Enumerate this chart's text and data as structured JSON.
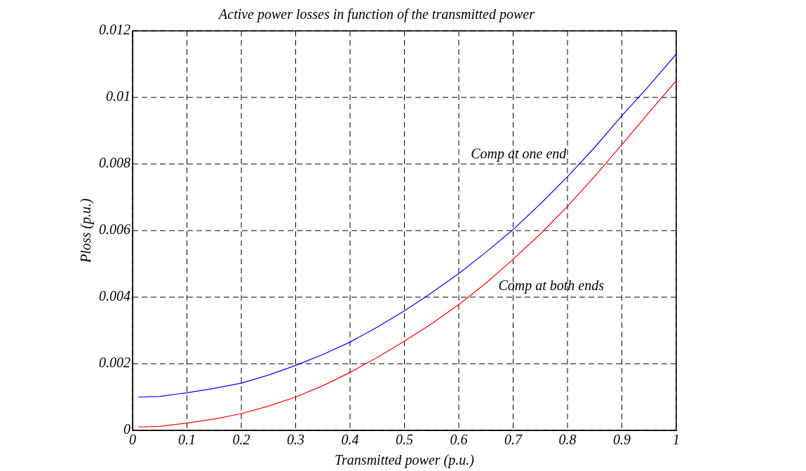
{
  "chart_data": {
    "type": "line",
    "title": "Active power losses in function of the transmitted power",
    "xlabel": "Transmitted power (p.u.)",
    "ylabel": "Ploss (p.u.)",
    "x": [
      0.01,
      0.05,
      0.1,
      0.15,
      0.2,
      0.25,
      0.3,
      0.35,
      0.4,
      0.45,
      0.5,
      0.55,
      0.6,
      0.65,
      0.7,
      0.75,
      0.8,
      0.85,
      0.9,
      0.95,
      1
    ],
    "series": [
      {
        "color": "#0000ff",
        "values": [
          0.001,
          0.00102,
          0.00113,
          0.00126,
          0.00142,
          0.00166,
          0.00195,
          0.00228,
          0.00265,
          0.0031,
          0.00359,
          0.00413,
          0.00471,
          0.00535,
          0.00603,
          0.0068,
          0.00762,
          0.0085,
          0.00945,
          0.01035,
          0.0113
        ]
      },
      {
        "color": "#ff0000",
        "values": [
          0.0001,
          0.00012,
          0.00022,
          0.00034,
          0.0005,
          0.00073,
          0.001,
          0.00134,
          0.00174,
          0.00219,
          0.00268,
          0.0032,
          0.00378,
          0.00442,
          0.00514,
          0.0059,
          0.00673,
          0.00763,
          0.00858,
          0.00955,
          0.0105
        ]
      }
    ],
    "xlim": [
      0,
      1
    ],
    "xticks": [
      0,
      0.1,
      0.2,
      0.3,
      0.4,
      0.5,
      0.6,
      0.7,
      0.8,
      0.9,
      1
    ],
    "ylim": [
      0,
      0.012
    ],
    "yticks": [
      0,
      0.002,
      0.004,
      0.006,
      0.008,
      0.01,
      0.012
    ],
    "grid": true,
    "line_style": "solid",
    "marker": "none",
    "annotations": [
      "Comp at one end",
      "Comp at both ends"
    ]
  }
}
